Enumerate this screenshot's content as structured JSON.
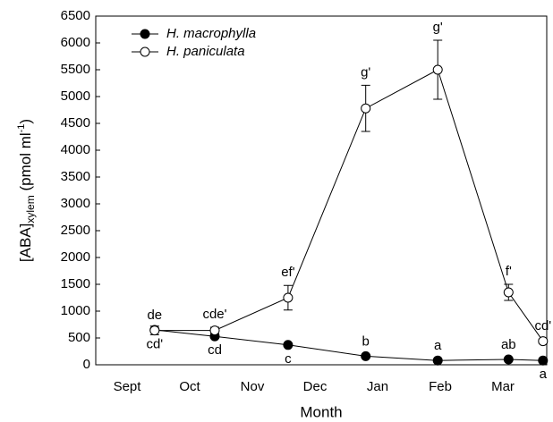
{
  "chart_data": {
    "type": "line",
    "x_label": "Month",
    "y_label": {
      "main": "[ABA]",
      "sub": "xylem",
      "unit": " (pmol ml",
      "sup": "-1",
      "close": ")"
    },
    "xlim": [
      0,
      7.2
    ],
    "xticks": [
      {
        "value": 0.5,
        "label": "Sept"
      },
      {
        "value": 1.5,
        "label": "Oct"
      },
      {
        "value": 2.5,
        "label": "Nov"
      },
      {
        "value": 3.5,
        "label": "Dec"
      },
      {
        "value": 4.5,
        "label": "Jan"
      },
      {
        "value": 5.5,
        "label": "Feb"
      },
      {
        "value": 6.5,
        "label": "Mar"
      }
    ],
    "x": [
      0.94,
      1.9,
      3.07,
      4.31,
      5.46,
      6.59,
      7.14
    ],
    "ylim": [
      0,
      6500
    ],
    "yticks": [
      0,
      500,
      1000,
      1500,
      2000,
      2500,
      3000,
      3500,
      4000,
      4500,
      5000,
      5500,
      6000,
      6500
    ],
    "series": [
      {
        "name": "H. macrophylla",
        "color": "#000000",
        "marker": "filled",
        "values": [
          650,
          530,
          370,
          160,
          80,
          100,
          80
        ],
        "value_labels": [
          "de",
          "cd",
          "c",
          "b",
          "a",
          "ab",
          "a"
        ]
      },
      {
        "name": "H. paniculata",
        "color": "#000000",
        "marker": "open",
        "values": [
          640,
          640,
          1250,
          4780,
          5500,
          1350,
          440
        ],
        "errors": [
          80,
          60,
          230,
          430,
          550,
          150,
          40
        ],
        "value_labels": [
          "cd'",
          "cde'",
          "ef'",
          "g'",
          "g'",
          "f'",
          "cd'"
        ]
      }
    ]
  }
}
